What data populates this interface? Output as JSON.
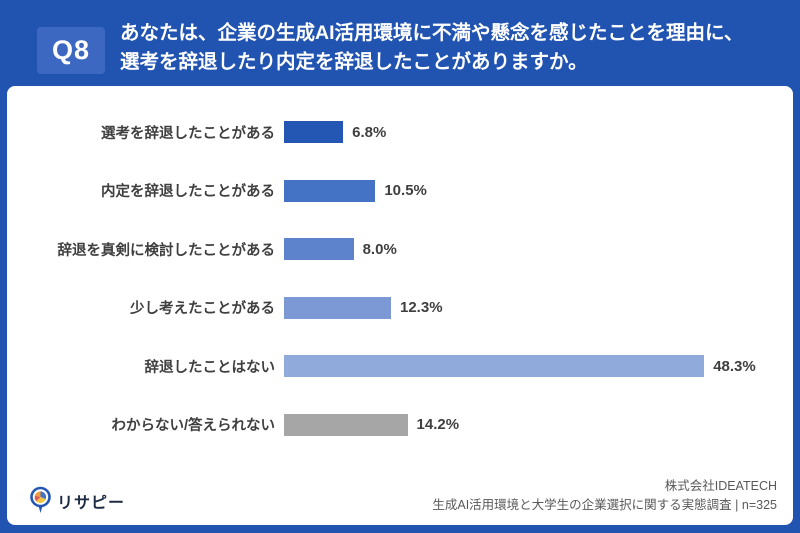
{
  "header": {
    "badge": "Q8",
    "question_line1": "あなたは、企業の生成AI活用環境に不満や懸念を感じたことを理由に、",
    "question_line2": "選考を辞退したり内定を辞退したことがありますか。"
  },
  "chart_data": {
    "type": "bar",
    "orientation": "horizontal",
    "title": "",
    "xlabel": "",
    "ylabel": "",
    "xlim": [
      0,
      55
    ],
    "grid": false,
    "legend": false,
    "categories": [
      "選考を辞退したことがある",
      "内定を辞退したことがある",
      "辞退を真剣に検討したことがある",
      "少し考えたことがある",
      "辞退したことはない",
      "わからない/答えられない"
    ],
    "values": [
      6.8,
      10.5,
      8.0,
      12.3,
      48.3,
      14.2
    ],
    "value_labels": [
      "6.8%",
      "10.5%",
      "8.0%",
      "12.3%",
      "48.3%",
      "14.2%"
    ],
    "bar_colors": [
      "#2456b4",
      "#4472c4",
      "#5c83cb",
      "#7d99d5",
      "#8faadb",
      "#a6a6a6"
    ]
  },
  "footer": {
    "logo_text": "リサピー",
    "company": "株式会社IDEATECH",
    "survey": "生成AI活用環境と大学生の企業選択に関する実態調査 | n=325"
  },
  "colors": {
    "page_background": "#2153b1",
    "badge_background": "#3d68c1",
    "card_background": "#ffffff",
    "label_text": "#3f3f3f",
    "source_text": "#595959",
    "logo_accent_blue": "#2456b4",
    "logo_accent_orange": "#f29b38",
    "logo_accent_red": "#e05a4e",
    "logo_accent_yellow": "#f6c244"
  }
}
